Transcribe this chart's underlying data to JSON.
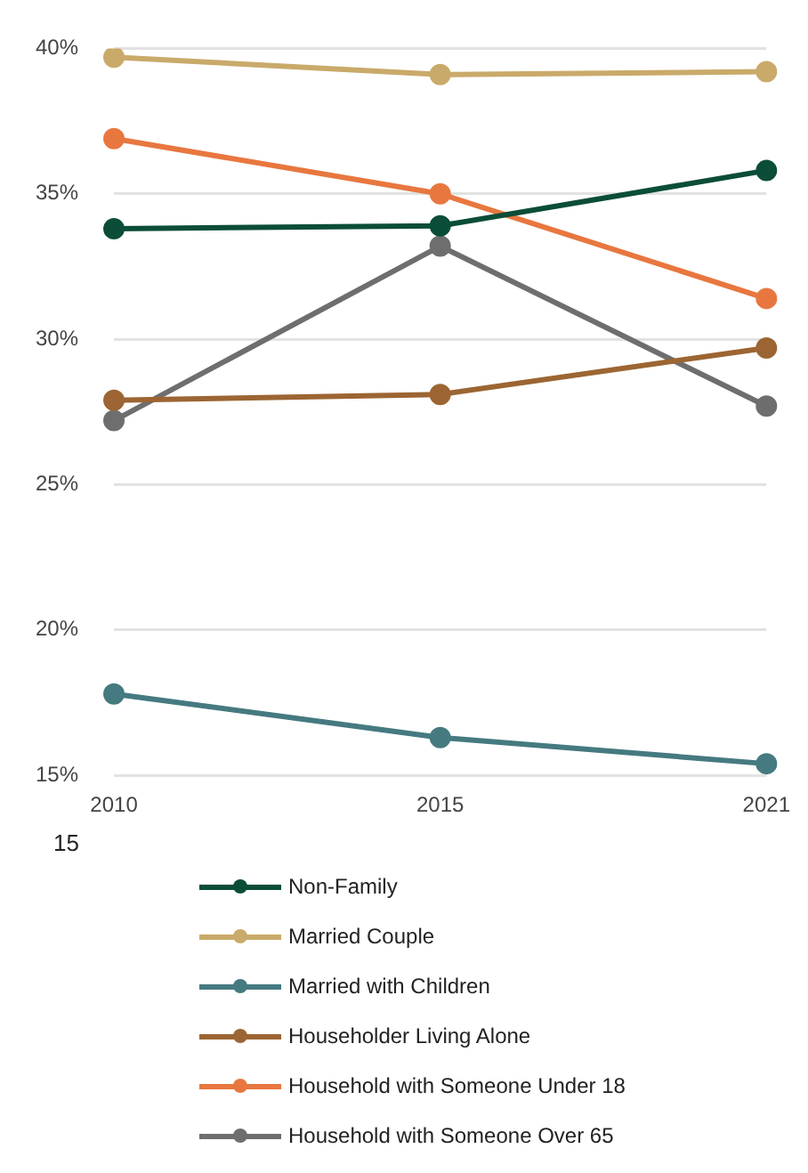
{
  "chart_data": {
    "type": "line",
    "categories": [
      "2010",
      "2015",
      "2021"
    ],
    "series": [
      {
        "name": "Non-Family",
        "color": "#0b4d38",
        "values": [
          33.8,
          33.9,
          35.8
        ]
      },
      {
        "name": "Married Couple",
        "color": "#c9aa6a",
        "values": [
          39.7,
          39.1,
          39.2
        ]
      },
      {
        "name": "Married with Children",
        "color": "#457a80",
        "values": [
          17.8,
          16.3,
          15.4
        ]
      },
      {
        "name": "Householder Living Alone",
        "color": "#9c6533",
        "values": [
          27.9,
          28.1,
          29.7
        ]
      },
      {
        "name": "Household with Someone Under 18",
        "color": "#e8773f",
        "values": [
          36.9,
          35.0,
          31.4
        ]
      },
      {
        "name": "Household with Someone Over 65",
        "color": "#6e6e6e",
        "values": [
          27.2,
          33.2,
          27.7
        ]
      }
    ],
    "ylim": [
      15,
      40
    ],
    "yticks": [
      {
        "value": 15,
        "label": "15%"
      },
      {
        "value": 20,
        "label": "20%"
      },
      {
        "value": 25,
        "label": "25%"
      },
      {
        "value": 30,
        "label": "30%"
      },
      {
        "value": 35,
        "label": "35%"
      },
      {
        "value": 40,
        "label": "40%"
      }
    ],
    "grid": "y",
    "legend": "bottom",
    "marker": "circle",
    "line_style": "solid",
    "annotations": [
      "15"
    ]
  }
}
